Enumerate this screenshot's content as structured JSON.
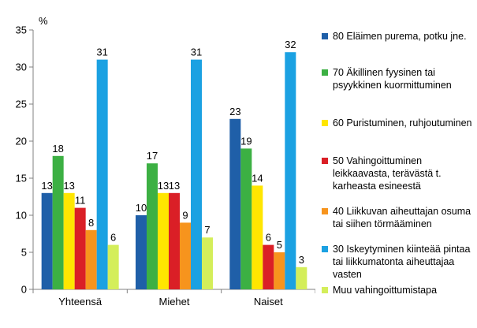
{
  "chart_data": {
    "type": "bar",
    "ylabel": "%",
    "ylim": [
      0,
      35
    ],
    "yticks": [
      0,
      5,
      10,
      15,
      20,
      25,
      30,
      35
    ],
    "grid": false,
    "legend_position": "right",
    "categories": [
      "Yhteensä",
      "Miehet",
      "Naiset"
    ],
    "series": [
      {
        "name": "80  Eläimen purema, potku jne.",
        "color": "#1F5FA8",
        "values": [
          13,
          10,
          23
        ]
      },
      {
        "name": "70  Äkillinen fyysinen tai psyykkinen kuormittuminen",
        "color": "#3CB043",
        "values": [
          18,
          17,
          19
        ]
      },
      {
        "name": "60  Puristuminen, ruhjoutuminen",
        "color": "#FFE600",
        "values": [
          13,
          13,
          14
        ]
      },
      {
        "name": "50  Vahingoittuminen leikkaavasta, terävästä t. karheasta esineestä",
        "color": "#DA1F26",
        "values": [
          11,
          13,
          6
        ]
      },
      {
        "name": "40  Liikkuvan aiheuttajan osuma tai siihen törmääminen",
        "color": "#F7941D",
        "values": [
          8,
          9,
          5
        ]
      },
      {
        "name": "30  Iskeytyminen kiinteää pintaa tai liikkumatonta aiheuttajaa vasten",
        "color": "#1BA1E2",
        "values": [
          31,
          31,
          32
        ]
      },
      {
        "name": "Muu vahingoittumistapa",
        "color": "#D4EE5A",
        "values": [
          6,
          7,
          3
        ]
      }
    ]
  }
}
